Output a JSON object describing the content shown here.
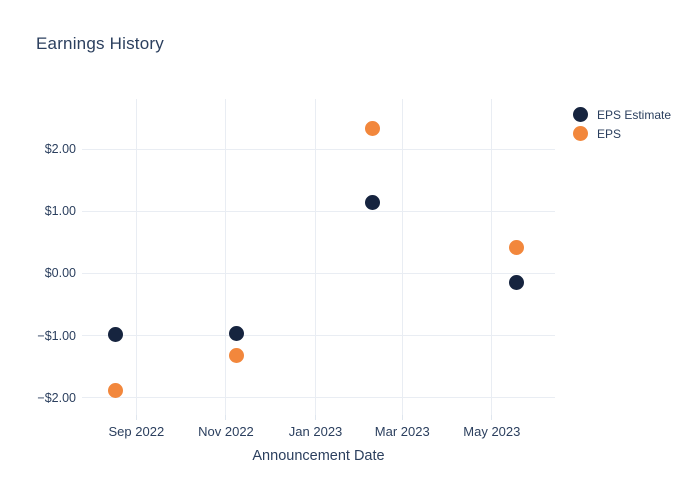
{
  "chart_data": {
    "type": "scatter",
    "title": "Earnings History",
    "xlabel": "Announcement Date",
    "ylabel": "",
    "grid": true,
    "legend_position": "right-top",
    "x_domain": [
      "2022-07-26",
      "2023-06-13"
    ],
    "y_domain": [
      -2.275,
      2.805
    ],
    "x_ticks": [
      {
        "date": "2022-09-01",
        "label": "Sep 2022"
      },
      {
        "date": "2022-11-01",
        "label": "Nov 2022"
      },
      {
        "date": "2023-01-01",
        "label": "Jan 2023"
      },
      {
        "date": "2023-03-01",
        "label": "Mar 2023"
      },
      {
        "date": "2023-05-01",
        "label": "May 2023"
      }
    ],
    "y_ticks": [
      {
        "value": 2,
        "label": "$2.00"
      },
      {
        "value": 1,
        "label": "$1.00"
      },
      {
        "value": 0,
        "label": "$0.00"
      },
      {
        "value": -1,
        "label": "−$1.00"
      },
      {
        "value": -2,
        "label": "−$2.00"
      }
    ],
    "series": [
      {
        "name": "EPS Estimate",
        "color": "#16243f",
        "points": [
          {
            "date": "2022-08-18",
            "value": -0.98
          },
          {
            "date": "2022-11-08",
            "value": -0.96
          },
          {
            "date": "2023-02-09",
            "value": 1.14
          },
          {
            "date": "2023-05-18",
            "value": -0.14
          }
        ]
      },
      {
        "name": "EPS",
        "color": "#f2873c",
        "points": [
          {
            "date": "2022-08-18",
            "value": -1.88
          },
          {
            "date": "2022-11-08",
            "value": -1.32
          },
          {
            "date": "2023-02-09",
            "value": 2.33
          },
          {
            "date": "2023-05-18",
            "value": 0.41
          }
        ]
      }
    ],
    "colors": {
      "text": "#2b3f5e",
      "grid": "#e9edf3",
      "tick": "#dfe6ee",
      "background": "#ffffff"
    },
    "marker_size": 15
  }
}
